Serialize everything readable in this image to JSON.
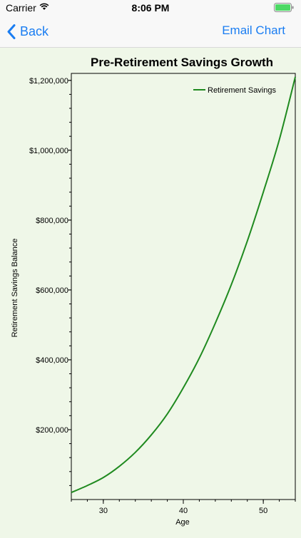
{
  "status_bar": {
    "carrier": "Carrier",
    "time": "8:06 PM"
  },
  "nav": {
    "back_label": "Back",
    "email_label": "Email Chart"
  },
  "colors": {
    "accent": "#1a7df2",
    "series": "#1f8a1f",
    "plot_bg": "#eff7e8",
    "battery": "#4cd964"
  },
  "chart_data": {
    "type": "line",
    "title": "Pre-Retirement Savings Growth",
    "xlabel": "Age",
    "ylabel": "Retirement Savings Balance",
    "xlim": [
      26,
      54
    ],
    "ylim": [
      0,
      1220000
    ],
    "x_ticks": [
      30,
      40,
      50
    ],
    "y_ticks": [
      {
        "value": 200000,
        "label": "$200,000"
      },
      {
        "value": 400000,
        "label": "$400,000"
      },
      {
        "value": 600000,
        "label": "$600,000"
      },
      {
        "value": 800000,
        "label": "$800,000"
      },
      {
        "value": 1000000,
        "label": "$1,000,000"
      },
      {
        "value": 1200000,
        "label": "$1,200,000"
      }
    ],
    "legend_position": "top-right",
    "series": [
      {
        "name": "Retirement Savings",
        "x": [
          26,
          28,
          30,
          32,
          34,
          36,
          38,
          40,
          42,
          44,
          46,
          48,
          50,
          52,
          54
        ],
        "values": [
          20000,
          40000,
          63000,
          95000,
          135000,
          185000,
          245000,
          320000,
          405000,
          505000,
          615000,
          740000,
          880000,
          1030000,
          1210000
        ]
      }
    ]
  }
}
